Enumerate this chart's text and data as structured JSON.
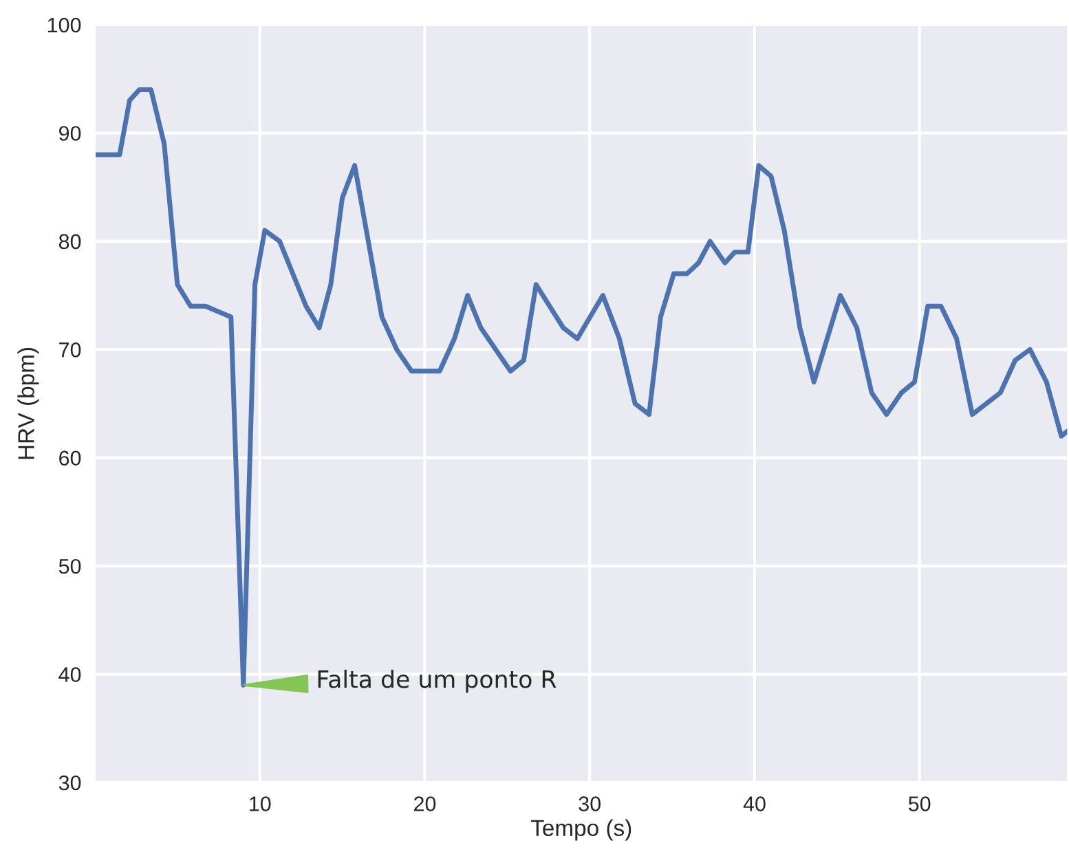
{
  "chart_data": {
    "type": "line",
    "xlabel": "Tempo (s)",
    "ylabel": "HRV (bpm)",
    "x": [
      0,
      1.5,
      2.1,
      2.7,
      3.4,
      4.2,
      5.0,
      5.8,
      6.7,
      8.25,
      9.0,
      9.7,
      10.3,
      11.2,
      12.8,
      13.6,
      14.3,
      15.0,
      15.75,
      17.4,
      18.3,
      19.2,
      20.9,
      21.8,
      22.6,
      23.4,
      25.2,
      26.0,
      26.75,
      28.4,
      29.25,
      30.8,
      31.8,
      32.75,
      33.6,
      34.3,
      35.1,
      35.9,
      36.6,
      37.3,
      38.2,
      38.8,
      39.6,
      40.25,
      41.0,
      41.8,
      42.75,
      43.6,
      45.2,
      46.2,
      47.1,
      48.0,
      48.9,
      49.7,
      50.5,
      51.3,
      52.25,
      53.2,
      54.9,
      55.8,
      56.7,
      57.7,
      58.6,
      59
    ],
    "series": [
      {
        "color": "#4c72b0",
        "values": [
          88,
          88,
          93,
          94,
          94,
          89,
          76,
          74,
          74,
          73,
          39,
          76,
          81,
          80,
          74,
          72,
          76,
          84,
          87,
          73,
          70,
          68,
          68,
          71,
          75,
          72,
          68,
          69,
          76,
          72,
          71,
          75,
          71,
          65,
          64,
          73,
          77,
          77,
          78,
          80,
          78,
          79,
          79,
          87,
          86,
          81,
          72,
          67,
          75,
          72,
          66,
          64,
          66,
          67,
          74,
          74,
          71,
          64,
          66,
          69,
          70,
          67,
          62,
          62.5
        ]
      }
    ],
    "xlim": [
      0,
      59
    ],
    "ylim": [
      30,
      100
    ],
    "xticks": [
      10,
      20,
      30,
      40,
      50
    ],
    "yticks": [
      30,
      40,
      50,
      60,
      70,
      80,
      90,
      100
    ],
    "grid": true,
    "marker": "none",
    "line_style": "solid",
    "annotations": [
      {
        "text": "Falta de um ponto R",
        "x": 9.0,
        "y": 39
      }
    ]
  }
}
